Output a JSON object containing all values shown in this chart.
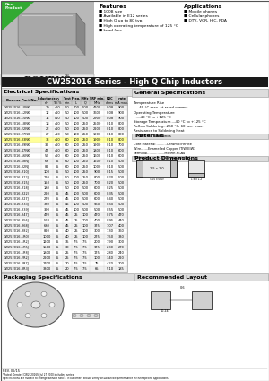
{
  "title": "CW252016 Series - High Q Chip Inductors",
  "title_bar_color": "#1a1a1a",
  "title_color": "#ffffff",
  "features": [
    "1008 size",
    "Available in E12 series",
    "High Q up to 80 typ.",
    "High operating temperature of 125 °C",
    "Lead free"
  ],
  "applications": [
    "Mobile phones",
    "Cellular phones",
    "DTV, VCR, HIC, PDA"
  ],
  "elec_spec_title": "Electrical Specifications",
  "gen_spec_title": "General Specifications",
  "gen_spec": [
    "Temperature Rise",
    "  ...40 °C max. at rated current",
    "Operating Temperature",
    "  ...-40 °C to +125 °C",
    "Storage Temperature...-40 °C to +125 °C",
    "Reflow Soldering...260 °C, 60 sec. max.",
    "Resistance to Soldering Heat",
    "  ...260 °C, 5 seconds"
  ],
  "materials_title": "Materials",
  "materials": [
    "Core Material...........Ceramic/Ferrite",
    "Wire.......Enamelled Copper (TIW/EIW)",
    "Terminal.................Mo/Mn-Ni-Au",
    "Packaging..........2,000 pcs per reel"
  ],
  "prod_dim_title": "Product Dimensions",
  "rec_layout_title": "Recommended Layout",
  "pkg_spec_title": "Packaging Specifications",
  "table_col_headers": [
    "Bourns Part No.",
    "Inductance",
    "Q",
    "",
    "Test Freq. MHz",
    "",
    "SRF min.",
    "RDC",
    "I rate"
  ],
  "table_col_subheaders": [
    "",
    "nH",
    "Tol.%",
    "min.",
    "L",
    "Q",
    "MHz",
    "ohms",
    "mA max."
  ],
  "table_data": [
    [
      "CW252016-10NK",
      "10",
      "x10",
      "50",
      "100",
      "500",
      "4100",
      "0.08",
      "900"
    ],
    [
      "CW252016-12NK",
      "12",
      "x10",
      "50",
      "100",
      "500",
      "3600",
      "0.08",
      "900"
    ],
    [
      "CW252016-15NK",
      "15",
      "x10",
      "50",
      "100",
      "500",
      "2900",
      "0.08",
      "900"
    ],
    [
      "CW252016-18NK",
      "18",
      "x10",
      "50",
      "100",
      "250",
      "2500",
      "0.10",
      "800"
    ],
    [
      "CW252016-22NK",
      "22",
      "x10",
      "50",
      "100",
      "250",
      "2200",
      "0.10",
      "800"
    ],
    [
      "CW252016-27NK",
      "27",
      "x10",
      "50",
      "100",
      "250",
      "1900",
      "0.10",
      "800"
    ],
    [
      "CW252016-33NK",
      "33",
      "x10",
      "60",
      "100",
      "250",
      "1900",
      "0.10",
      "800"
    ],
    [
      "CW252016-39NK",
      "39",
      "x10",
      "60",
      "100",
      "250",
      "1900",
      "0.10",
      "700"
    ],
    [
      "CW252016-47NK",
      "47",
      "x10",
      "60",
      "100",
      "250",
      "1800",
      "0.10",
      "600"
    ],
    [
      "CW252016-56NK",
      "56",
      "x10",
      "60",
      "100",
      "250",
      "1600",
      "0.10",
      "600"
    ],
    [
      "CW252016-68NJ",
      "68",
      "x5",
      "60",
      "100",
      "250",
      "1500",
      "0.10",
      "500"
    ],
    [
      "CW252016-82NJ",
      "82",
      "x5",
      "60",
      "100",
      "250",
      "1000",
      "0.10",
      "500"
    ],
    [
      "CW252016-R10J",
      "100",
      "x5",
      "50",
      "100",
      "250",
      "900",
      "0.15",
      "500"
    ],
    [
      "CW252016-R12J",
      "120",
      "x5",
      "50",
      "100",
      "250",
      "800",
      "0.20",
      "500"
    ],
    [
      "CW252016-R15J",
      "150",
      "x5",
      "50",
      "100",
      "250",
      "700",
      "0.20",
      "500"
    ],
    [
      "CW252016-R18J",
      "180",
      "x5",
      "50",
      "100",
      "500",
      "600",
      "0.25",
      "500"
    ],
    [
      "CW252016-R22J",
      "220",
      "x5",
      "45",
      "100",
      "500",
      "600",
      "0.35",
      "500"
    ],
    [
      "CW252016-R27J",
      "270",
      "x5",
      "45",
      "100",
      "500",
      "600",
      "0.40",
      "500"
    ],
    [
      "CW252016-R33J",
      "330",
      "x5",
      "45",
      "100",
      "500",
      "550",
      "0.50",
      "500"
    ],
    [
      "CW252016-R39J",
      "390",
      "x5",
      "45",
      "100",
      "500",
      "500",
      "0.55",
      "500"
    ],
    [
      "CW252016-R47J",
      "470",
      "x5",
      "45",
      "25",
      "100",
      "470",
      "0.75",
      "470"
    ],
    [
      "CW252016-R56J",
      "560",
      "x5",
      "45",
      "25",
      "100",
      "400",
      "0.95",
      "440"
    ],
    [
      "CW252016-R68J",
      "680",
      "x5",
      "45",
      "25",
      "100",
      "375",
      "1.07",
      "400"
    ],
    [
      "CW252016-R82J",
      "820",
      "x5",
      "40",
      "25",
      "100",
      "300",
      "1.30",
      "360"
    ],
    [
      "CW252016-1R0J",
      "1000",
      "x5",
      "40",
      "25",
      "100",
      "275",
      "1.50",
      "330"
    ],
    [
      "CW252016-1R2J",
      "1200",
      "x5",
      "35",
      "7.5",
      "7.5",
      "200",
      "1.90",
      "300"
    ],
    [
      "CW252016-1R5J",
      "1500",
      "x5",
      "30",
      "7.5",
      "7.5",
      "175",
      "2.30",
      "270"
    ],
    [
      "CW252016-1R8J",
      "1800",
      "x5",
      "25",
      "7.5",
      "7.5",
      "175",
      "2.80",
      "240"
    ],
    [
      "CW252016-2R2J",
      "2200",
      "x5",
      "25",
      "7.5",
      "7.5",
      "100",
      "3.40",
      "220"
    ],
    [
      "CW252016-2R7J",
      "2700",
      "x5",
      "20",
      "7.5",
      "7.5",
      "75",
      "4.20",
      "200"
    ],
    [
      "CW252016-3R3J",
      "3300",
      "x5",
      "20",
      "7.5",
      "7.5",
      "65",
      "5.10",
      "185"
    ]
  ],
  "highlight_row": "CW252016-33NK",
  "highlight_color": "#ffff99",
  "bg_color": "#ffffff",
  "header_bg": "#d0d0d0",
  "section_header_bg": "#dddddd",
  "border_color": "#999999"
}
